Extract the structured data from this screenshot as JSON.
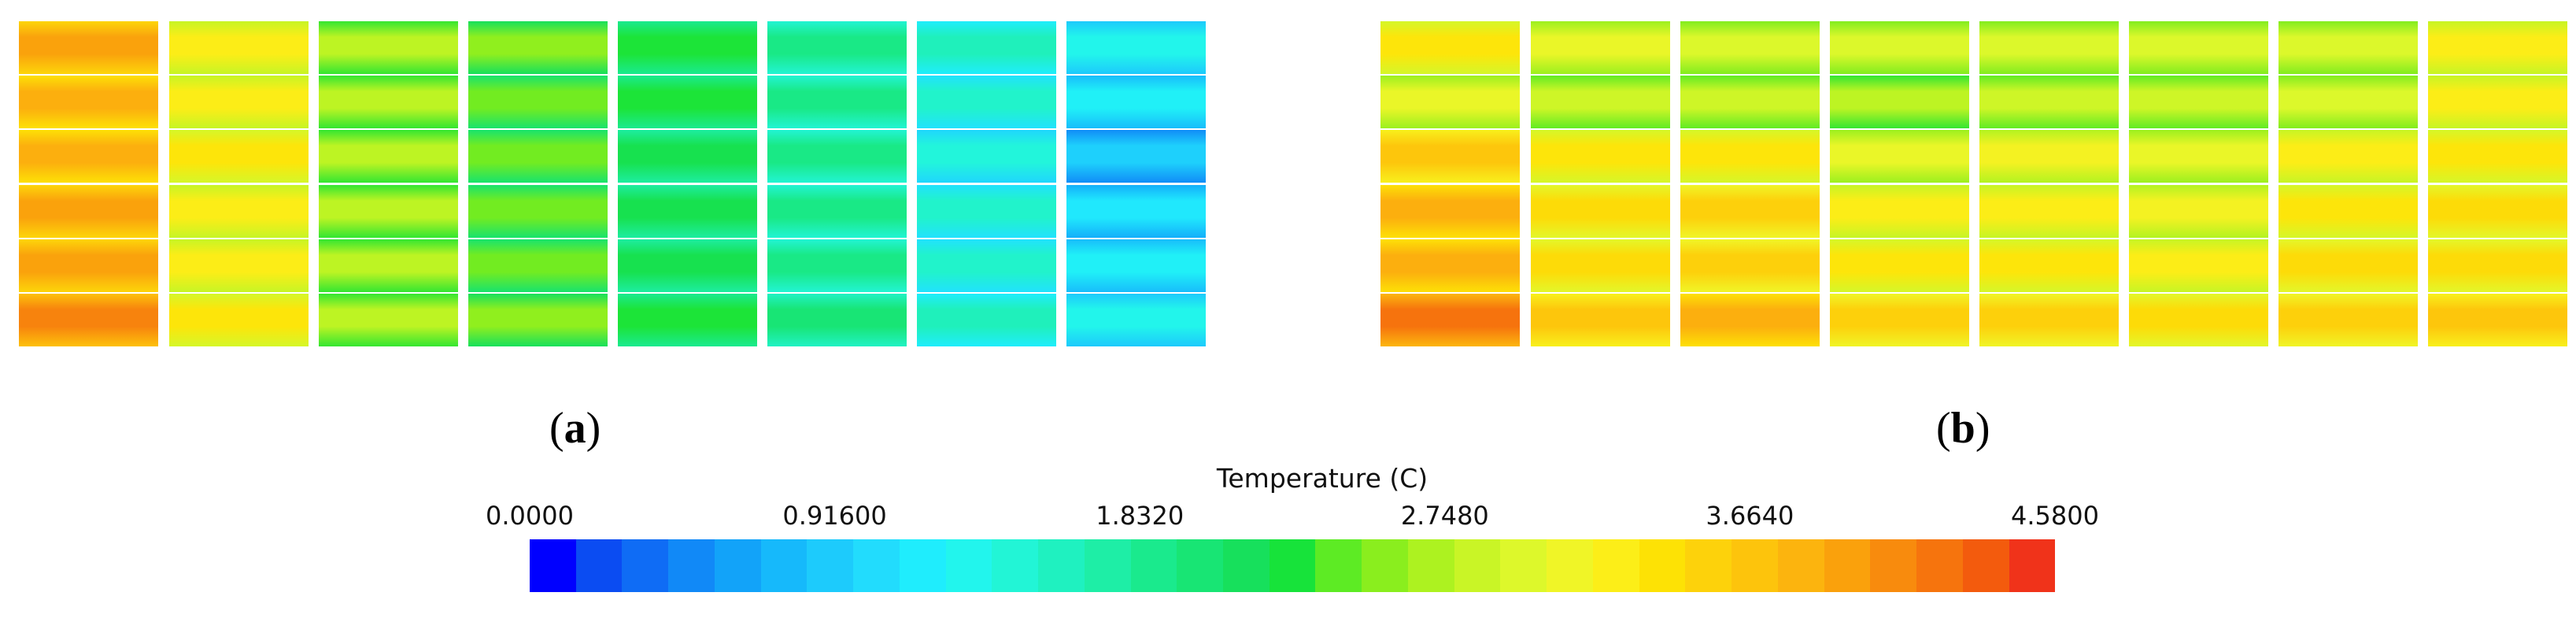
{
  "figure": {
    "panels": [
      {
        "id": "a",
        "caption_open": "(",
        "caption_letter": "a",
        "caption_close": ")",
        "temperature_C": [
          [
            4.0,
            3.3,
            2.8,
            2.6,
            2.3,
            1.9,
            1.6,
            1.3
          ],
          [
            3.9,
            3.3,
            2.8,
            2.5,
            2.3,
            1.9,
            1.5,
            1.2
          ],
          [
            3.9,
            3.4,
            2.8,
            2.5,
            2.2,
            1.9,
            1.4,
            0.9
          ],
          [
            4.0,
            3.3,
            2.8,
            2.5,
            2.2,
            1.9,
            1.5,
            1.1
          ],
          [
            4.0,
            3.3,
            2.8,
            2.5,
            2.2,
            1.9,
            1.5,
            1.2
          ],
          [
            4.2,
            3.4,
            2.8,
            2.6,
            2.3,
            2.0,
            1.6,
            1.3
          ]
        ]
      },
      {
        "id": "b",
        "caption_open": "(",
        "caption_letter": "b",
        "caption_close": ")",
        "temperature_C": [
          [
            3.4,
            3.1,
            3.0,
            3.0,
            3.0,
            3.0,
            3.0,
            3.3
          ],
          [
            3.1,
            2.9,
            2.9,
            2.8,
            2.9,
            2.9,
            3.0,
            3.3
          ],
          [
            3.7,
            3.4,
            3.4,
            3.1,
            3.2,
            3.1,
            3.3,
            3.4
          ],
          [
            3.9,
            3.5,
            3.6,
            3.3,
            3.3,
            3.2,
            3.4,
            3.5
          ],
          [
            3.9,
            3.5,
            3.6,
            3.4,
            3.4,
            3.3,
            3.5,
            3.5
          ],
          [
            4.3,
            3.7,
            3.9,
            3.6,
            3.6,
            3.5,
            3.6,
            3.7
          ]
        ]
      }
    ]
  },
  "colorbar": {
    "title": "Temperature (C)",
    "min": 0.0,
    "max": 4.58,
    "tick_values": [
      0.0,
      0.916,
      1.832,
      2.748,
      3.664,
      4.58
    ],
    "tick_labels": [
      "0.0000",
      "0.91600",
      "1.8320",
      "2.7480",
      "3.6640",
      "4.5800"
    ],
    "colors": [
      "#0000ff",
      "#0b4cf2",
      "#0f6cf5",
      "#1189f7",
      "#12a3f9",
      "#16b9fb",
      "#1dcbfc",
      "#22dcfd",
      "#1fedfd",
      "#22f5ed",
      "#22f5d6",
      "#1ff1c0",
      "#1eeea6",
      "#1aea8d",
      "#18e574",
      "#17e05c",
      "#17e33a",
      "#5deb24",
      "#8aee1e",
      "#adf220",
      "#c9f526",
      "#ddf82b",
      "#f0f527",
      "#fcee18",
      "#fde205",
      "#fdd20b",
      "#fdc40c",
      "#fcb40e",
      "#faa10c",
      "#f88b0d",
      "#f6740d",
      "#f35b0d",
      "#f0331a"
    ]
  }
}
